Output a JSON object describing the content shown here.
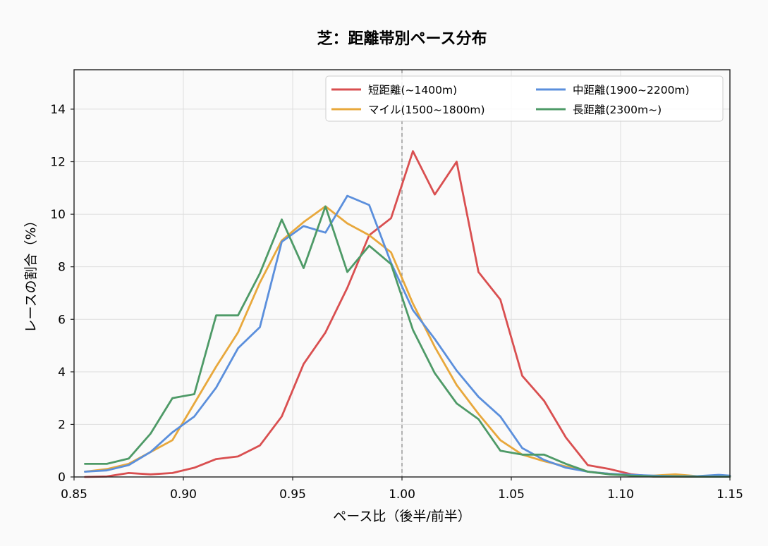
{
  "chart_data": {
    "type": "line",
    "title": "芝：距離帯別ペース分布",
    "xlabel": "ペース比（後半/前半）",
    "ylabel": "レースの割合（%）",
    "xlim": [
      0.85,
      1.15
    ],
    "ylim": [
      0,
      15.5
    ],
    "xticks": [
      0.85,
      0.9,
      0.95,
      1.0,
      1.05,
      1.1,
      1.15
    ],
    "xtick_labels": [
      "0.85",
      "0.90",
      "0.95",
      "1.00",
      "1.05",
      "1.10",
      "1.15"
    ],
    "yticks": [
      0,
      2,
      4,
      6,
      8,
      10,
      12,
      14
    ],
    "ytick_labels": [
      "0",
      "2",
      "4",
      "6",
      "8",
      "10",
      "12",
      "14"
    ],
    "grid": true,
    "legend_position": "top-right",
    "reference_line_x": 1.0,
    "x": [
      0.855,
      0.865,
      0.875,
      0.885,
      0.895,
      0.905,
      0.915,
      0.925,
      0.935,
      0.945,
      0.955,
      0.965,
      0.975,
      0.985,
      0.995,
      1.005,
      1.015,
      1.025,
      1.035,
      1.045,
      1.055,
      1.065,
      1.075,
      1.085,
      1.095,
      1.105,
      1.115,
      1.125,
      1.135,
      1.145,
      1.15
    ],
    "series": [
      {
        "name": "短距離(~1400m)",
        "color": "#d94f50",
        "values": [
          0.0,
          0.02,
          0.15,
          0.1,
          0.15,
          0.35,
          0.68,
          0.78,
          1.2,
          2.3,
          4.3,
          5.5,
          7.2,
          9.2,
          9.85,
          12.4,
          10.75,
          12.0,
          7.8,
          6.75,
          3.85,
          2.9,
          1.5,
          0.45,
          0.3,
          0.1,
          0.02,
          0.02,
          0.01,
          0.03,
          0.03
        ]
      },
      {
        "name": "マイル(1500~1800m)",
        "color": "#e8a83c",
        "values": [
          0.2,
          0.3,
          0.5,
          0.95,
          1.4,
          2.8,
          4.2,
          5.5,
          7.4,
          9.0,
          9.7,
          10.3,
          9.65,
          9.2,
          8.55,
          6.6,
          4.95,
          3.5,
          2.4,
          1.4,
          0.85,
          0.6,
          0.4,
          0.2,
          0.12,
          0.05,
          0.05,
          0.1,
          0.03,
          0.03,
          0.03
        ]
      },
      {
        "name": "中距離(1900~2200m)",
        "color": "#5b8fdc",
        "values": [
          0.2,
          0.25,
          0.45,
          0.95,
          1.7,
          2.3,
          3.4,
          4.9,
          5.7,
          8.95,
          9.55,
          9.3,
          10.7,
          10.35,
          8.15,
          6.35,
          5.25,
          4.05,
          3.05,
          2.3,
          1.1,
          0.65,
          0.35,
          0.2,
          0.12,
          0.08,
          0.05,
          0.03,
          0.03,
          0.08,
          0.05
        ]
      },
      {
        "name": "長距離(2300m~)",
        "color": "#4e9a67",
        "values": [
          0.5,
          0.5,
          0.7,
          1.65,
          3.0,
          3.15,
          6.15,
          6.15,
          7.75,
          9.8,
          7.95,
          10.3,
          7.8,
          8.8,
          8.1,
          5.6,
          3.95,
          2.8,
          2.2,
          1.0,
          0.85,
          0.85,
          0.5,
          0.2,
          0.1,
          0.05,
          0.02,
          0.02,
          0.01,
          0.01,
          0.01
        ]
      }
    ]
  }
}
